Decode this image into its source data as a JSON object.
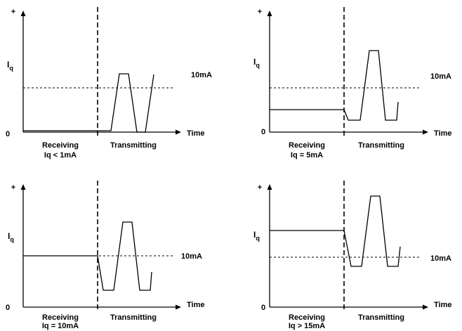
{
  "panels": [
    {
      "id": "receive-under-1ma",
      "plus_label": "+",
      "y_label_main": "I",
      "y_label_sub": "q",
      "zero_label": "0",
      "x_label": "Time",
      "ref_label": "10mA",
      "phase_left": [
        "Receiving",
        "Iq < 1mA"
      ],
      "phase_right": "Transmitting"
    },
    {
      "id": "receive-5ma",
      "plus_label": "+",
      "y_label_main": "I",
      "y_label_sub": "q",
      "zero_label": "0",
      "x_label": "Time",
      "ref_label": "10mA",
      "phase_left": [
        "Receiving",
        "Iq = 5mA"
      ],
      "phase_right": "Transmitting"
    },
    {
      "id": "receive-10ma",
      "plus_label": "+",
      "y_label_main": "I",
      "y_label_sub": "q",
      "zero_label": "0",
      "x_label": "Time",
      "ref_label": "10mA",
      "phase_left": [
        "Receiving",
        "Iq = 10mA"
      ],
      "phase_right": "Transmitting"
    },
    {
      "id": "receive-over-15ma",
      "plus_label": "+",
      "y_label_main": "I",
      "y_label_sub": "q",
      "zero_label": "0",
      "x_label": "Time",
      "ref_label": "10mA",
      "phase_left": [
        "Receiving",
        "Iq > 15mA"
      ],
      "phase_right": "Transmitting"
    }
  ]
}
